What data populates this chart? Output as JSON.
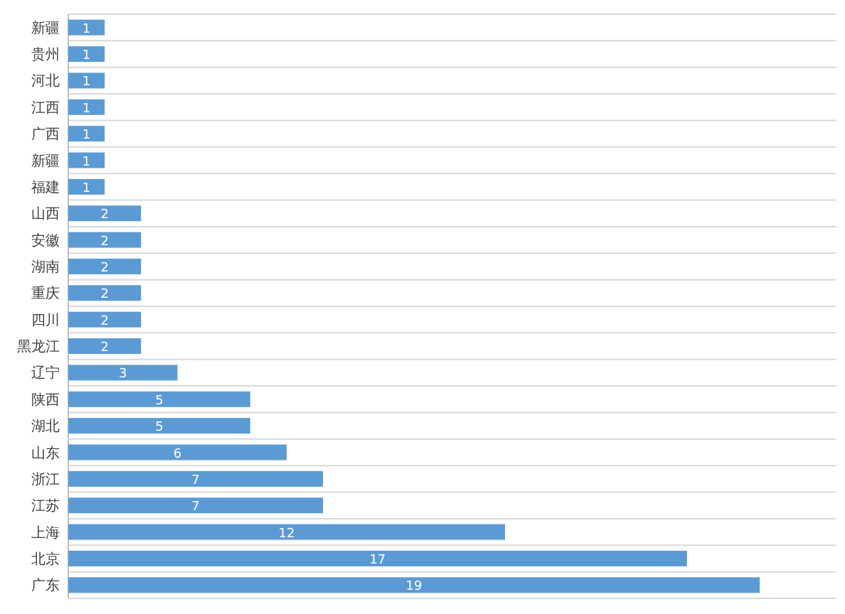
{
  "chart_data": {
    "type": "bar",
    "orientation": "horizontal",
    "categories": [
      "新疆",
      "贵州",
      "河北",
      "江西",
      "广西",
      "新疆",
      "福建",
      "山西",
      "安徽",
      "湖南",
      "重庆",
      "四川",
      "黑龙江",
      "辽宁",
      "陕西",
      "湖北",
      "山东",
      "浙江",
      "江苏",
      "上海",
      "北京",
      "广东"
    ],
    "values": [
      1,
      1,
      1,
      1,
      1,
      1,
      1,
      2,
      2,
      2,
      2,
      2,
      2,
      3,
      5,
      5,
      6,
      7,
      7,
      12,
      17,
      19
    ],
    "color": "#5b9bd5",
    "data_labels": true,
    "grid": "y"
  }
}
